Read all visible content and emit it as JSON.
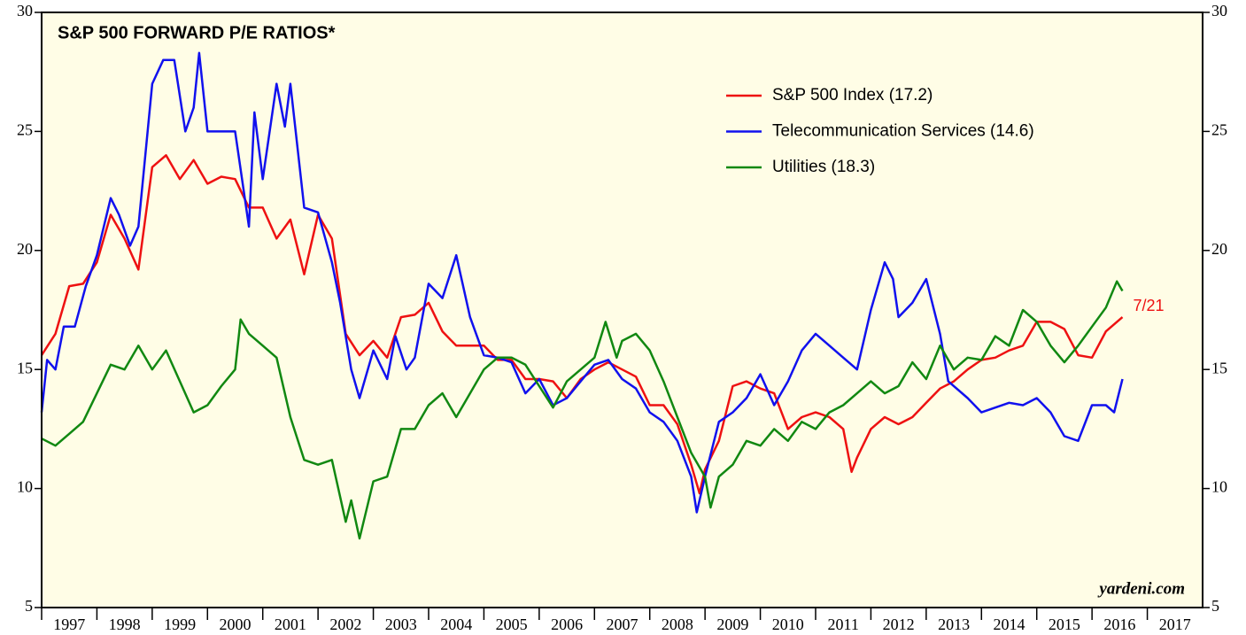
{
  "chart_data": {
    "type": "line",
    "title": "S&P 500 FORWARD P/E RATIOS*",
    "source": "yardeni.com",
    "annotation": "7/21",
    "legend": "upper right",
    "xlim": [
      1997,
      2018
    ],
    "xticks": [
      1997,
      1998,
      1999,
      2000,
      2001,
      2002,
      2003,
      2004,
      2005,
      2006,
      2007,
      2008,
      2009,
      2010,
      2011,
      2012,
      2013,
      2014,
      2015,
      2016,
      2017
    ],
    "ylim": [
      5,
      30
    ],
    "yticks": [
      5,
      10,
      15,
      20,
      25,
      30
    ],
    "series": [
      {
        "name": "S&P 500 Index (17.2)",
        "color": "#ee1111",
        "x": [
          1997.0,
          1997.25,
          1997.5,
          1997.75,
          1998.0,
          1998.25,
          1998.5,
          1998.75,
          1999.0,
          1999.25,
          1999.5,
          1999.75,
          2000.0,
          2000.25,
          2000.5,
          2000.75,
          2001.0,
          2001.25,
          2001.5,
          2001.75,
          2002.0,
          2002.25,
          2002.5,
          2002.75,
          2003.0,
          2003.25,
          2003.5,
          2003.75,
          2004.0,
          2004.25,
          2004.5,
          2004.75,
          2005.0,
          2005.25,
          2005.5,
          2005.75,
          2006.0,
          2006.25,
          2006.5,
          2006.75,
          2007.0,
          2007.25,
          2007.5,
          2007.75,
          2008.0,
          2008.25,
          2008.5,
          2008.75,
          2008.9,
          2009.0,
          2009.25,
          2009.5,
          2009.75,
          2010.0,
          2010.25,
          2010.5,
          2010.75,
          2011.0,
          2011.25,
          2011.5,
          2011.65,
          2011.75,
          2012.0,
          2012.25,
          2012.5,
          2012.75,
          2013.0,
          2013.25,
          2013.5,
          2013.75,
          2014.0,
          2014.25,
          2014.5,
          2014.75,
          2015.0,
          2015.25,
          2015.5,
          2015.75,
          2016.0,
          2016.25,
          2016.55
        ],
        "values": [
          15.6,
          16.5,
          18.5,
          18.6,
          19.5,
          21.5,
          20.5,
          19.2,
          23.5,
          24.0,
          23.0,
          23.8,
          22.8,
          23.1,
          23.0,
          21.8,
          21.8,
          20.5,
          21.3,
          19.0,
          21.5,
          20.5,
          16.5,
          15.6,
          16.2,
          15.5,
          17.2,
          17.3,
          17.8,
          16.6,
          16.0,
          16.0,
          16.0,
          15.4,
          15.4,
          14.6,
          14.6,
          14.5,
          13.8,
          14.6,
          15.0,
          15.3,
          15.0,
          14.7,
          13.5,
          13.5,
          12.7,
          11.0,
          9.8,
          10.8,
          12.0,
          14.3,
          14.5,
          14.2,
          14.0,
          12.5,
          13.0,
          13.2,
          13.0,
          12.5,
          10.7,
          11.3,
          12.5,
          13.0,
          12.7,
          13.0,
          13.6,
          14.2,
          14.5,
          15.0,
          15.4,
          15.5,
          15.8,
          16.0,
          17.0,
          17.0,
          16.7,
          15.6,
          15.5,
          16.6,
          17.2
        ]
      },
      {
        "name": "Telecommunication Services (14.6)",
        "color": "#1111ee",
        "x": [
          1997.0,
          1997.1,
          1997.25,
          1997.4,
          1997.6,
          1997.8,
          1998.0,
          1998.25,
          1998.4,
          1998.6,
          1998.75,
          1999.0,
          1999.2,
          1999.4,
          1999.6,
          1999.75,
          1999.85,
          2000.0,
          2000.25,
          2000.5,
          2000.75,
          2000.85,
          2001.0,
          2001.25,
          2001.4,
          2001.5,
          2001.75,
          2002.0,
          2002.25,
          2002.4,
          2002.6,
          2002.75,
          2003.0,
          2003.25,
          2003.4,
          2003.6,
          2003.75,
          2004.0,
          2004.25,
          2004.5,
          2004.75,
          2005.0,
          2005.25,
          2005.5,
          2005.75,
          2006.0,
          2006.25,
          2006.5,
          2006.75,
          2007.0,
          2007.25,
          2007.5,
          2007.75,
          2008.0,
          2008.25,
          2008.5,
          2008.75,
          2008.85,
          2009.0,
          2009.25,
          2009.5,
          2009.75,
          2010.0,
          2010.25,
          2010.5,
          2010.75,
          2011.0,
          2011.25,
          2011.5,
          2011.75,
          2012.0,
          2012.25,
          2012.4,
          2012.5,
          2012.75,
          2013.0,
          2013.25,
          2013.4,
          2013.75,
          2014.0,
          2014.25,
          2014.5,
          2014.75,
          2015.0,
          2015.25,
          2015.5,
          2015.75,
          2016.0,
          2016.25,
          2016.4,
          2016.55
        ],
        "values": [
          13.2,
          15.4,
          15.0,
          16.8,
          16.8,
          18.5,
          19.8,
          22.2,
          21.5,
          20.2,
          21.0,
          27.0,
          28.0,
          28.0,
          25.0,
          26.0,
          28.3,
          25.0,
          25.0,
          25.0,
          21.0,
          25.8,
          23.0,
          27.0,
          25.2,
          27.0,
          21.8,
          21.6,
          19.5,
          17.8,
          15.0,
          13.8,
          15.8,
          14.6,
          16.4,
          15.0,
          15.5,
          18.6,
          18.0,
          19.8,
          17.2,
          15.6,
          15.5,
          15.3,
          14.0,
          14.6,
          13.5,
          13.8,
          14.5,
          15.2,
          15.4,
          14.6,
          14.2,
          13.2,
          12.8,
          12.0,
          10.5,
          9.0,
          10.5,
          12.8,
          13.2,
          13.8,
          14.8,
          13.5,
          14.5,
          15.8,
          16.5,
          16.0,
          15.5,
          15.0,
          17.5,
          19.5,
          18.8,
          17.2,
          17.8,
          18.8,
          16.5,
          14.5,
          13.8,
          13.2,
          13.4,
          13.6,
          13.5,
          13.8,
          13.2,
          12.2,
          12.0,
          13.5,
          13.5,
          13.2,
          14.6
        ]
      },
      {
        "name": "Utilities (18.3)",
        "color": "#118811",
        "x": [
          1997.0,
          1997.25,
          1997.5,
          1997.75,
          1998.0,
          1998.25,
          1998.5,
          1998.75,
          1999.0,
          1999.25,
          1999.5,
          1999.75,
          2000.0,
          2000.25,
          2000.5,
          2000.6,
          2000.75,
          2001.0,
          2001.25,
          2001.5,
          2001.75,
          2002.0,
          2002.25,
          2002.5,
          2002.6,
          2002.75,
          2003.0,
          2003.25,
          2003.5,
          2003.75,
          2004.0,
          2004.25,
          2004.5,
          2004.75,
          2005.0,
          2005.25,
          2005.5,
          2005.75,
          2006.0,
          2006.25,
          2006.5,
          2006.75,
          2007.0,
          2007.2,
          2007.4,
          2007.5,
          2007.75,
          2008.0,
          2008.25,
          2008.5,
          2008.75,
          2009.0,
          2009.1,
          2009.25,
          2009.5,
          2009.75,
          2010.0,
          2010.25,
          2010.5,
          2010.75,
          2011.0,
          2011.25,
          2011.5,
          2011.75,
          2012.0,
          2012.25,
          2012.5,
          2012.75,
          2013.0,
          2013.25,
          2013.5,
          2013.75,
          2014.0,
          2014.25,
          2014.5,
          2014.75,
          2015.0,
          2015.25,
          2015.5,
          2015.75,
          2016.0,
          2016.25,
          2016.45,
          2016.55
        ],
        "values": [
          12.1,
          11.8,
          12.3,
          12.8,
          14.0,
          15.2,
          15.0,
          16.0,
          15.0,
          15.8,
          14.5,
          13.2,
          13.5,
          14.3,
          15.0,
          17.1,
          16.5,
          16.0,
          15.5,
          13.0,
          11.2,
          11.0,
          11.2,
          8.6,
          9.5,
          7.9,
          10.3,
          10.5,
          12.5,
          12.5,
          13.5,
          14.0,
          13.0,
          14.0,
          15.0,
          15.5,
          15.5,
          15.2,
          14.3,
          13.4,
          14.5,
          15.0,
          15.5,
          17.0,
          15.5,
          16.2,
          16.5,
          15.8,
          14.5,
          13.0,
          11.5,
          10.5,
          9.2,
          10.5,
          11.0,
          12.0,
          11.8,
          12.5,
          12.0,
          12.8,
          12.5,
          13.2,
          13.5,
          14.0,
          14.5,
          14.0,
          14.3,
          15.3,
          14.6,
          16.0,
          15.0,
          15.5,
          15.4,
          16.4,
          16.0,
          17.5,
          17.0,
          16.0,
          15.3,
          16.0,
          16.8,
          17.6,
          18.7,
          18.3
        ]
      }
    ]
  }
}
